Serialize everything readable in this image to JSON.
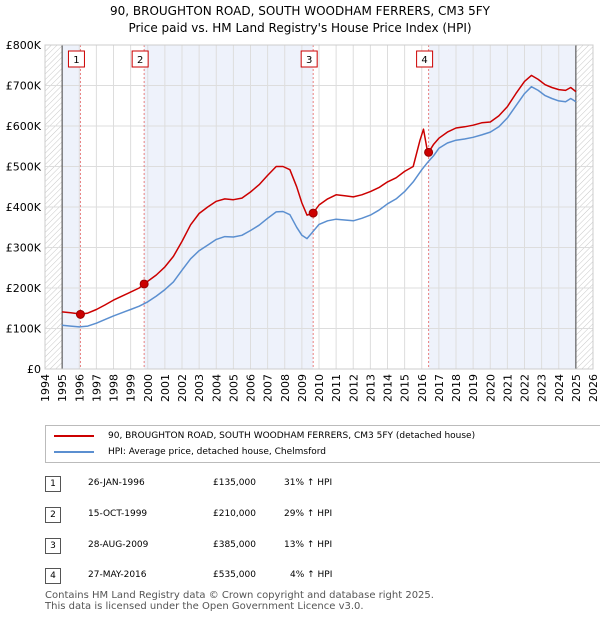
{
  "title_line1": "90, BROUGHTON ROAD, SOUTH WOODHAM FERRERS, CM3 5FY",
  "title_line2": "Price paid vs. HM Land Registry's House Price Index (HPI)",
  "chart_data": {
    "type": "line",
    "xlim": [
      1994,
      2026
    ],
    "ylim": [
      0,
      800000
    ],
    "x_ticks": [
      "1994",
      "1995",
      "1996",
      "1997",
      "1998",
      "1999",
      "2000",
      "2001",
      "2002",
      "2003",
      "2004",
      "2005",
      "2006",
      "2007",
      "2008",
      "2009",
      "2010",
      "2011",
      "2012",
      "2013",
      "2014",
      "2015",
      "2016",
      "2017",
      "2018",
      "2019",
      "2020",
      "2021",
      "2022",
      "2023",
      "2024",
      "2025",
      "2026"
    ],
    "y_ticks": [
      {
        "value": 0,
        "label": "£0"
      },
      {
        "value": 100000,
        "label": "£100K"
      },
      {
        "value": 200000,
        "label": "£200K"
      },
      {
        "value": 300000,
        "label": "£300K"
      },
      {
        "value": 400000,
        "label": "£400K"
      },
      {
        "value": 500000,
        "label": "£500K"
      },
      {
        "value": 600000,
        "label": "£600K"
      },
      {
        "value": 700000,
        "label": "£700K"
      },
      {
        "value": 800000,
        "label": "£800K"
      }
    ],
    "data_start": 1995.0,
    "data_end": 2025.0,
    "shaded_periods": [
      [
        1995.0,
        1996.07
      ],
      [
        1999.79,
        2009.66
      ],
      [
        2016.4,
        2025.0
      ]
    ],
    "series": [
      {
        "name": "90, BROUGHTON ROAD, SOUTH WOODHAM FERRERS, CM3 5FY (detached house)",
        "color": "#cc0000",
        "points": [
          [
            1995.0,
            141000
          ],
          [
            1995.5,
            139000
          ],
          [
            1996.0,
            136000
          ],
          [
            1996.07,
            135000
          ],
          [
            1996.5,
            138000
          ],
          [
            1997.0,
            147000
          ],
          [
            1997.5,
            158000
          ],
          [
            1998.0,
            170000
          ],
          [
            1998.5,
            180000
          ],
          [
            1999.0,
            190000
          ],
          [
            1999.5,
            200000
          ],
          [
            1999.79,
            210000
          ],
          [
            2000.5,
            232000
          ],
          [
            2001.0,
            252000
          ],
          [
            2001.5,
            278000
          ],
          [
            2002.0,
            315000
          ],
          [
            2002.5,
            356000
          ],
          [
            2003.0,
            384000
          ],
          [
            2003.5,
            400000
          ],
          [
            2004.0,
            414000
          ],
          [
            2004.5,
            420000
          ],
          [
            2005.0,
            418000
          ],
          [
            2005.5,
            422000
          ],
          [
            2006.0,
            437000
          ],
          [
            2006.5,
            455000
          ],
          [
            2007.0,
            478000
          ],
          [
            2007.5,
            500000
          ],
          [
            2007.9,
            500000
          ],
          [
            2008.3,
            492000
          ],
          [
            2008.7,
            450000
          ],
          [
            2009.0,
            410000
          ],
          [
            2009.3,
            380000
          ],
          [
            2009.66,
            385000
          ],
          [
            2010.0,
            405000
          ],
          [
            2010.5,
            420000
          ],
          [
            2011.0,
            430000
          ],
          [
            2011.5,
            428000
          ],
          [
            2012.0,
            425000
          ],
          [
            2012.5,
            430000
          ],
          [
            2013.0,
            438000
          ],
          [
            2013.5,
            448000
          ],
          [
            2014.0,
            462000
          ],
          [
            2014.5,
            472000
          ],
          [
            2015.0,
            488000
          ],
          [
            2015.5,
            500000
          ],
          [
            2015.9,
            565000
          ],
          [
            2016.1,
            592000
          ],
          [
            2016.3,
            545000
          ],
          [
            2016.4,
            535000
          ],
          [
            2016.7,
            555000
          ],
          [
            2017.0,
            570000
          ],
          [
            2017.5,
            585000
          ],
          [
            2018.0,
            595000
          ],
          [
            2018.5,
            598000
          ],
          [
            2019.0,
            602000
          ],
          [
            2019.5,
            608000
          ],
          [
            2020.0,
            610000
          ],
          [
            2020.5,
            625000
          ],
          [
            2021.0,
            648000
          ],
          [
            2021.5,
            680000
          ],
          [
            2022.0,
            710000
          ],
          [
            2022.4,
            725000
          ],
          [
            2022.8,
            715000
          ],
          [
            2023.2,
            702000
          ],
          [
            2023.6,
            695000
          ],
          [
            2024.0,
            690000
          ],
          [
            2024.4,
            688000
          ],
          [
            2024.7,
            695000
          ],
          [
            2025.0,
            685000
          ]
        ]
      },
      {
        "name": "HPI: Average price, detached house, Chelmsford",
        "color": "#5b8fd0",
        "points": [
          [
            1995.0,
            108000
          ],
          [
            1995.5,
            106000
          ],
          [
            1996.0,
            104000
          ],
          [
            1996.5,
            106000
          ],
          [
            1997.0,
            113000
          ],
          [
            1997.5,
            122000
          ],
          [
            1998.0,
            131000
          ],
          [
            1998.5,
            139000
          ],
          [
            1999.0,
            147000
          ],
          [
            1999.5,
            155000
          ],
          [
            2000.0,
            166000
          ],
          [
            2000.5,
            180000
          ],
          [
            2001.0,
            196000
          ],
          [
            2001.5,
            215000
          ],
          [
            2002.0,
            244000
          ],
          [
            2002.5,
            272000
          ],
          [
            2003.0,
            292000
          ],
          [
            2003.5,
            306000
          ],
          [
            2004.0,
            320000
          ],
          [
            2004.5,
            327000
          ],
          [
            2005.0,
            326000
          ],
          [
            2005.5,
            330000
          ],
          [
            2006.0,
            342000
          ],
          [
            2006.5,
            355000
          ],
          [
            2007.0,
            372000
          ],
          [
            2007.5,
            388000
          ],
          [
            2007.9,
            389000
          ],
          [
            2008.3,
            381000
          ],
          [
            2008.7,
            350000
          ],
          [
            2009.0,
            330000
          ],
          [
            2009.3,
            322000
          ],
          [
            2009.66,
            340000
          ],
          [
            2010.0,
            357000
          ],
          [
            2010.5,
            366000
          ],
          [
            2011.0,
            370000
          ],
          [
            2011.5,
            368000
          ],
          [
            2012.0,
            366000
          ],
          [
            2012.5,
            372000
          ],
          [
            2013.0,
            380000
          ],
          [
            2013.5,
            392000
          ],
          [
            2014.0,
            408000
          ],
          [
            2014.5,
            420000
          ],
          [
            2015.0,
            438000
          ],
          [
            2015.5,
            462000
          ],
          [
            2016.0,
            492000
          ],
          [
            2016.4,
            513000
          ],
          [
            2016.7,
            527000
          ],
          [
            2017.0,
            545000
          ],
          [
            2017.5,
            558000
          ],
          [
            2018.0,
            565000
          ],
          [
            2018.5,
            568000
          ],
          [
            2019.0,
            572000
          ],
          [
            2019.5,
            578000
          ],
          [
            2020.0,
            585000
          ],
          [
            2020.5,
            598000
          ],
          [
            2021.0,
            620000
          ],
          [
            2021.5,
            650000
          ],
          [
            2022.0,
            680000
          ],
          [
            2022.4,
            697000
          ],
          [
            2022.8,
            688000
          ],
          [
            2023.2,
            675000
          ],
          [
            2023.6,
            668000
          ],
          [
            2024.0,
            662000
          ],
          [
            2024.4,
            660000
          ],
          [
            2024.7,
            668000
          ],
          [
            2025.0,
            660000
          ]
        ]
      }
    ],
    "sales": [
      {
        "label": "1",
        "x": 1996.07,
        "y": 135000
      },
      {
        "label": "2",
        "x": 1999.79,
        "y": 210000
      },
      {
        "label": "3",
        "x": 2009.66,
        "y": 385000
      },
      {
        "label": "4",
        "x": 2016.4,
        "y": 535000
      }
    ]
  },
  "legend": {
    "series1": "90, BROUGHTON ROAD, SOUTH WOODHAM FERRERS, CM3 5FY (detached house)",
    "series2": "HPI: Average price, detached house, Chelmsford",
    "color1": "#cc0000",
    "color2": "#5b8fd0"
  },
  "transactions": [
    {
      "num": "1",
      "date": "26-JAN-1996",
      "price": "£135,000",
      "hpi": "31% ↑ HPI"
    },
    {
      "num": "2",
      "date": "15-OCT-1999",
      "price": "£210,000",
      "hpi": "29% ↑ HPI"
    },
    {
      "num": "3",
      "date": "28-AUG-2009",
      "price": "£385,000",
      "hpi": "13% ↑ HPI"
    },
    {
      "num": "4",
      "date": "27-MAY-2016",
      "price": "£535,000",
      "hpi": "4% ↑ HPI"
    }
  ],
  "footer_line1": "Contains HM Land Registry data © Crown copyright and database right 2025.",
  "footer_line2": "This data is licensed under the Open Government Licence v3.0."
}
